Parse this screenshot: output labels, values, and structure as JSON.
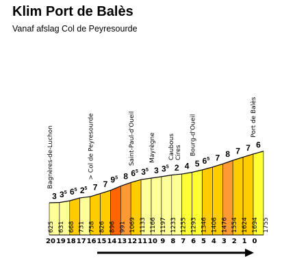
{
  "header": {
    "title": "Klim Port de Balès",
    "subtitle": "Vanaf afslag Col de Peyresourde"
  },
  "chart_data": {
    "type": "area",
    "title": "Klim Port de Balès",
    "subtitle": "Vanaf afslag Col de Peyresourde",
    "km": [
      20,
      19,
      18,
      17,
      16,
      15,
      14,
      13,
      12,
      11,
      10,
      9,
      8,
      7,
      6,
      5,
      4,
      3,
      2,
      1,
      0
    ],
    "altitudes": [
      625,
      631,
      668,
      731,
      758,
      826,
      896,
      991,
      1069,
      1133,
      1166,
      1197,
      1233,
      1255,
      1293,
      1346,
      1406,
      1476,
      1554,
      1624,
      1694,
      1755
    ],
    "gradients": [
      "3",
      "3⁵",
      "6⁵",
      "2⁵",
      "7",
      "7",
      "9⁵",
      "8",
      "6⁵",
      "3⁵",
      "3",
      "3⁵",
      "2",
      "4",
      "5",
      "6⁵",
      "7",
      "8",
      "7",
      "7",
      "6"
    ],
    "gradient_values": [
      3,
      3.5,
      6.5,
      2.5,
      7,
      7,
      9.5,
      8,
      6.5,
      3.5,
      3,
      3.5,
      2,
      4,
      5,
      6.5,
      7,
      8,
      7,
      7,
      6
    ],
    "places": [
      {
        "name": "Bagnères-de-Luchon",
        "segment": 0
      },
      {
        "name": "> Col de Peyresourde",
        "segment": 4
      },
      {
        "name": "Saint-Paul-d'Oueil",
        "segment": 8
      },
      {
        "name": "Mayrègne",
        "segment": 10
      },
      {
        "name": "Caubous",
        "segment": 12
      },
      {
        "name": "Cires",
        "segment": 12
      },
      {
        "name": "Bourg-d'Oueil",
        "segment": 14
      },
      {
        "name": "Port de Balès",
        "segment": 20
      }
    ],
    "direction": "left-to-right"
  },
  "colors": {
    "gradient_scale": {
      "flat": "#ffff99",
      "light": "#ffff33",
      "moderate": "#ffcc00",
      "steep": "#ff9933",
      "very_steep": "#ff6600"
    },
    "outline": "#000000",
    "text": "#000000"
  }
}
